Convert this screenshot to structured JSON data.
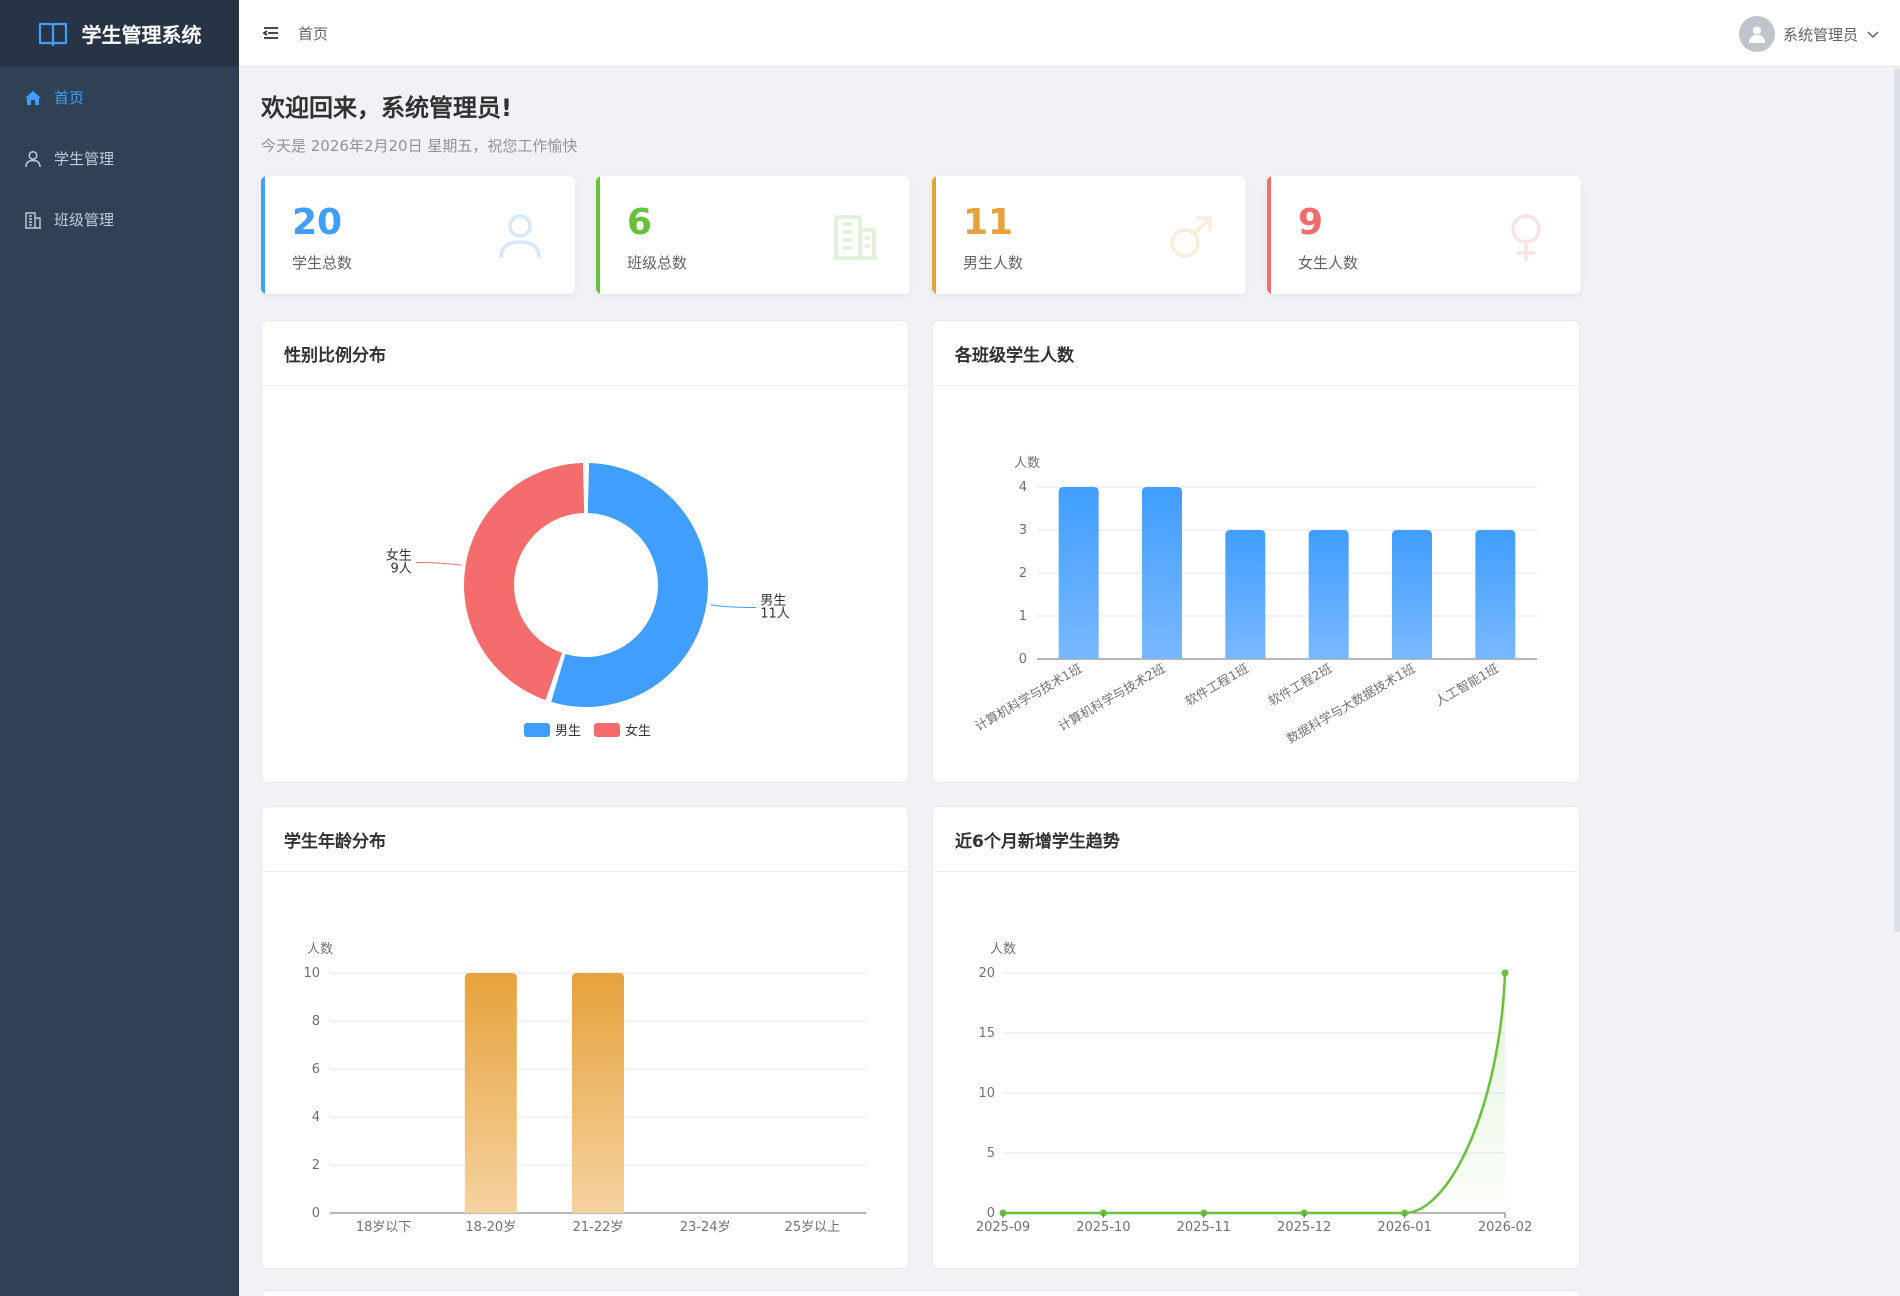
{
  "app": {
    "title": "学生管理系统"
  },
  "sidebar": {
    "items": [
      {
        "label": "首页",
        "icon": "home-icon",
        "active": true
      },
      {
        "label": "学生管理",
        "icon": "user-icon",
        "active": false
      },
      {
        "label": "班级管理",
        "icon": "building-icon",
        "active": false
      }
    ]
  },
  "header": {
    "breadcrumb": "首页",
    "user_name": "系统管理员"
  },
  "welcome": {
    "title": "欢迎回来，系统管理员!",
    "subtitle": "今天是 2026年2月20日 星期五，祝您工作愉快"
  },
  "stats": [
    {
      "value": "20",
      "label": "学生总数",
      "color": "#409eff",
      "icon": "user-icon"
    },
    {
      "value": "6",
      "label": "班级总数",
      "color": "#67c23a",
      "icon": "building-icon"
    },
    {
      "value": "11",
      "label": "男生人数",
      "color": "#e6a23c",
      "icon": "male-icon"
    },
    {
      "value": "9",
      "label": "女生人数",
      "color": "#f56c6c",
      "icon": "female-icon"
    }
  ],
  "panels": {
    "gender": {
      "title": "性别比例分布"
    },
    "classes": {
      "title": "各班级学生人数"
    },
    "ages": {
      "title": "学生年龄分布"
    },
    "trend": {
      "title": "近6个月新增学生趋势"
    }
  },
  "chart_data": [
    {
      "type": "pie",
      "title": "性别比例分布",
      "slices": [
        {
          "name": "男生",
          "value": 11,
          "label": "11人",
          "color": "#409eff"
        },
        {
          "name": "女生",
          "value": 9,
          "label": "9人",
          "color": "#f56c6c"
        }
      ],
      "legend_placement": "bottom"
    },
    {
      "type": "bar",
      "title": "各班级学生人数",
      "ylabel": "人数",
      "categories": [
        "计算机科学与技术1班",
        "计算机科学与技术2班",
        "软件工程1班",
        "软件工程2班",
        "数据科学与大数据技术1班",
        "人工智能1班"
      ],
      "values": [
        4,
        4,
        3,
        3,
        3,
        3
      ],
      "ylim": [
        0,
        4
      ],
      "yticks": [
        0,
        1,
        2,
        3,
        4
      ],
      "color": "#409eff",
      "grid": true
    },
    {
      "type": "bar",
      "title": "学生年龄分布",
      "ylabel": "人数",
      "categories": [
        "18岁以下",
        "18-20岁",
        "21-22岁",
        "23-24岁",
        "25岁以上"
      ],
      "values": [
        0,
        10,
        10,
        0,
        0
      ],
      "ylim": [
        0,
        10
      ],
      "yticks": [
        0,
        2,
        4,
        6,
        8,
        10
      ],
      "color": "#e6a23c",
      "grid": true
    },
    {
      "type": "line",
      "title": "近6个月新增学生趋势",
      "ylabel": "人数",
      "x": [
        "2025-09",
        "2025-10",
        "2025-11",
        "2025-12",
        "2026-01",
        "2026-02"
      ],
      "values": [
        0,
        0,
        0,
        0,
        0,
        20
      ],
      "ylim": [
        0,
        20
      ],
      "yticks": [
        0,
        5,
        10,
        15,
        20
      ],
      "color": "#67c23a",
      "grid": true
    }
  ]
}
